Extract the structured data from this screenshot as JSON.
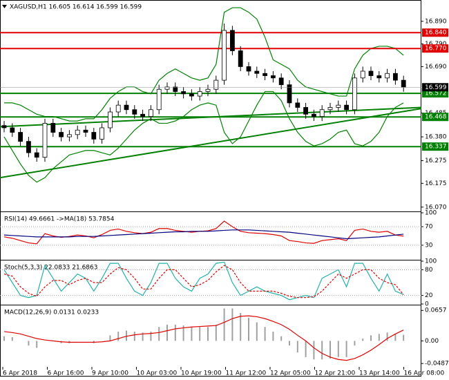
{
  "chart_data": [
    {
      "type": "candlestick",
      "title": "XAGUSD,H1 16.605 16.614 16.599 16.599",
      "open": [
        16.43,
        16.42,
        16.4,
        16.36,
        16.31,
        16.29,
        16.44,
        16.4,
        16.38,
        16.39,
        16.41,
        16.4,
        16.37,
        16.42,
        16.49,
        16.52,
        16.5,
        16.48,
        16.47,
        16.5,
        16.59,
        16.6,
        16.58,
        16.57,
        16.56,
        16.58,
        16.59,
        16.63,
        16.85,
        16.76,
        16.69,
        16.67,
        16.66,
        16.65,
        16.64,
        16.61,
        16.53,
        16.51,
        16.48,
        16.47,
        16.5,
        16.51,
        16.52,
        16.5,
        16.64,
        16.67,
        16.65,
        16.64,
        16.66,
        16.63
      ],
      "high": [
        16.45,
        16.44,
        16.42,
        16.38,
        16.33,
        16.46,
        16.46,
        16.42,
        16.41,
        16.43,
        16.43,
        16.42,
        16.44,
        16.51,
        16.54,
        16.54,
        16.52,
        16.5,
        16.52,
        16.61,
        16.62,
        16.62,
        16.6,
        16.59,
        16.6,
        16.61,
        16.65,
        16.88,
        16.87,
        16.78,
        16.71,
        16.69,
        16.68,
        16.67,
        16.66,
        16.63,
        16.55,
        16.53,
        16.5,
        16.52,
        16.53,
        16.54,
        16.54,
        16.66,
        16.69,
        16.69,
        16.67,
        16.68,
        16.68,
        16.65
      ],
      "low": [
        16.4,
        16.38,
        16.34,
        16.29,
        16.27,
        16.27,
        16.38,
        16.36,
        16.36,
        16.37,
        16.38,
        16.35,
        16.35,
        16.4,
        16.47,
        16.48,
        16.46,
        16.45,
        16.45,
        16.48,
        16.57,
        16.56,
        16.55,
        16.54,
        16.54,
        16.56,
        16.57,
        16.61,
        16.74,
        16.67,
        16.65,
        16.64,
        16.63,
        16.62,
        16.59,
        16.51,
        16.49,
        16.46,
        16.45,
        16.45,
        16.48,
        16.49,
        16.48,
        16.48,
        16.62,
        16.63,
        16.62,
        16.62,
        16.61,
        16.579
      ],
      "close": [
        16.42,
        16.4,
        16.36,
        16.31,
        16.29,
        16.44,
        16.4,
        16.38,
        16.39,
        16.41,
        16.4,
        16.37,
        16.42,
        16.49,
        16.52,
        16.5,
        16.48,
        16.47,
        16.5,
        16.59,
        16.6,
        16.58,
        16.57,
        16.56,
        16.58,
        16.59,
        16.63,
        16.85,
        16.76,
        16.69,
        16.67,
        16.66,
        16.65,
        16.64,
        16.61,
        16.53,
        16.51,
        16.48,
        16.47,
        16.5,
        16.51,
        16.52,
        16.5,
        16.64,
        16.67,
        16.65,
        16.64,
        16.66,
        16.63,
        16.599
      ],
      "upper_band": [
        16.53,
        16.53,
        16.52,
        16.5,
        16.48,
        16.47,
        16.47,
        16.46,
        16.45,
        16.45,
        16.46,
        16.46,
        16.5,
        16.55,
        16.58,
        16.6,
        16.6,
        16.58,
        16.57,
        16.63,
        16.66,
        16.68,
        16.66,
        16.64,
        16.63,
        16.64,
        16.7,
        16.93,
        16.95,
        16.95,
        16.93,
        16.9,
        16.82,
        16.72,
        16.7,
        16.68,
        16.63,
        16.6,
        16.59,
        16.58,
        16.57,
        16.56,
        16.56,
        16.68,
        16.74,
        16.77,
        16.78,
        16.78,
        16.77,
        16.74
      ],
      "lower_band": [
        16.38,
        16.32,
        16.26,
        16.21,
        16.18,
        16.2,
        16.24,
        16.27,
        16.3,
        16.31,
        16.32,
        16.32,
        16.31,
        16.3,
        16.33,
        16.37,
        16.41,
        16.44,
        16.46,
        16.44,
        16.44,
        16.45,
        16.47,
        16.5,
        16.52,
        16.53,
        16.52,
        16.4,
        16.35,
        16.38,
        16.45,
        16.52,
        16.58,
        16.58,
        16.54,
        16.46,
        16.4,
        16.36,
        16.34,
        16.35,
        16.37,
        16.4,
        16.41,
        16.35,
        16.34,
        16.36,
        16.4,
        16.47,
        16.51,
        16.53
      ],
      "band_color": "#008000",
      "trendlines": [
        {
          "start": 16.2,
          "end": 16.505
        },
        {
          "start": 16.425,
          "end": 16.51
        }
      ],
      "trend_color": "#008000",
      "levels": [
        {
          "value": 16.84,
          "label": "16.840",
          "color": "#e00000"
        },
        {
          "value": 16.77,
          "label": "16.770",
          "color": "#e00000"
        },
        {
          "value": 16.572,
          "color": "#008000"
        },
        {
          "value": 16.468,
          "color": "#008000"
        },
        {
          "value": 16.337,
          "color": "#008000"
        }
      ],
      "last_price": 16.599,
      "ylim": [
        16.054,
        16.981
      ],
      "yticks": [
        {
          "value": 16.89,
          "label": "16.890"
        },
        {
          "value": 16.79,
          "label": "16.790"
        },
        {
          "value": 16.69,
          "label": "16.690"
        },
        16.485,
        {
          "value": 16.38,
          "label": "16.380"
        },
        16.275,
        16.175,
        {
          "value": 16.07,
          "label": "16.070"
        }
      ]
    },
    {
      "type": "line",
      "title": "RSI(14) 49.6661 ->MA(18) 53.7854",
      "series": [
        {
          "color": "#e00000",
          "values": [
            48,
            45,
            40,
            35,
            33,
            55,
            50,
            47,
            49,
            52,
            50,
            46,
            53,
            62,
            65,
            60,
            57,
            55,
            58,
            66,
            66,
            62,
            60,
            58,
            60,
            61,
            66,
            82,
            70,
            60,
            57,
            56,
            55,
            53,
            50,
            40,
            38,
            35,
            34,
            40,
            42,
            44,
            40,
            62,
            65,
            60,
            58,
            60,
            52,
            49.6661
          ]
        },
        {
          "color": "#000080",
          "values": [
            52,
            51,
            50,
            49,
            48,
            48,
            48,
            48,
            48,
            49,
            49,
            49,
            50,
            51,
            52,
            53,
            54,
            55,
            56,
            57,
            58,
            59,
            59,
            60,
            60,
            60,
            61,
            62,
            63,
            63,
            63,
            62,
            61,
            60,
            59,
            58,
            56,
            54,
            52,
            50,
            48,
            46,
            44,
            45,
            46,
            47,
            48,
            50,
            52,
            53.7854
          ]
        }
      ],
      "ylim": [
        0,
        100
      ],
      "yticks": [
        100,
        70,
        30
      ],
      "grid": true
    },
    {
      "type": "line",
      "title": "Stoch(5,3,3) 22.0833 21.6863",
      "series": [
        {
          "color": "#20b2aa",
          "values": [
            80,
            50,
            20,
            15,
            20,
            90,
            60,
            30,
            50,
            70,
            60,
            30,
            60,
            95,
            95,
            60,
            30,
            20,
            50,
            95,
            95,
            60,
            40,
            30,
            60,
            70,
            95,
            98,
            50,
            20,
            30,
            40,
            30,
            25,
            20,
            10,
            15,
            20,
            15,
            60,
            70,
            80,
            40,
            95,
            95,
            60,
            30,
            70,
            30,
            22.0833
          ]
        },
        {
          "color": "#e00000",
          "dashed": true,
          "values": [
            70,
            65,
            40,
            25,
            18,
            40,
            55,
            55,
            45,
            55,
            60,
            50,
            50,
            70,
            85,
            80,
            60,
            35,
            35,
            60,
            80,
            80,
            60,
            40,
            45,
            55,
            75,
            90,
            80,
            50,
            30,
            30,
            30,
            30,
            25,
            18,
            15,
            15,
            17,
            30,
            50,
            70,
            60,
            70,
            80,
            80,
            60,
            50,
            45,
            21.6863
          ]
        }
      ],
      "ylim": [
        0,
        100
      ],
      "yticks": [
        100,
        80,
        20,
        0
      ],
      "grid": true
    },
    {
      "type": "macd",
      "title": "MACD(12,26,9) 0.0131 0.0233",
      "series": [
        {
          "kind": "bar",
          "color": "#a0a0a0",
          "values": [
            0.01,
            0.008,
            0.0,
            -0.01,
            -0.015,
            0.0,
            0.0,
            -0.005,
            -0.005,
            0.0,
            0.0,
            -0.005,
            0.0,
            0.012,
            0.02,
            0.022,
            0.02,
            0.018,
            0.02,
            0.03,
            0.035,
            0.035,
            0.033,
            0.03,
            0.03,
            0.03,
            0.035,
            0.07,
            0.07,
            0.06,
            0.05,
            0.04,
            0.03,
            0.02,
            0.01,
            -0.01,
            -0.025,
            -0.035,
            -0.04,
            -0.04,
            -0.038,
            -0.035,
            -0.035,
            -0.01,
            0.005,
            0.012,
            0.015,
            0.018,
            0.016,
            0.0131
          ]
        },
        {
          "kind": "line",
          "color": "#e00000",
          "values": [
            0.02,
            0.018,
            0.015,
            0.01,
            0.005,
            0.002,
            0.0,
            -0.002,
            -0.003,
            -0.003,
            -0.003,
            -0.003,
            -0.002,
            0.0,
            0.005,
            0.01,
            0.013,
            0.015,
            0.016,
            0.018,
            0.022,
            0.026,
            0.028,
            0.03,
            0.031,
            0.032,
            0.033,
            0.04,
            0.048,
            0.053,
            0.054,
            0.052,
            0.048,
            0.042,
            0.035,
            0.025,
            0.012,
            0.0,
            -0.015,
            -0.027,
            -0.035,
            -0.04,
            -0.042,
            -0.038,
            -0.03,
            -0.02,
            -0.008,
            0.005,
            0.015,
            0.0233
          ]
        }
      ],
      "ylim": [
        -0.056,
        0.075
      ],
      "yticks": [
        0.0657,
        {
          "value": 0,
          "label": "0.00"
        },
        -0.0487
      ],
      "x_labels": [
        "6 Apr 2018",
        "6 Apr 16:00",
        "9 Apr 10:00",
        "10 Apr 03:00",
        "10 Apr 19:00",
        "11 Apr 12:00",
        "12 Apr 05:00",
        "12 Apr 21:00",
        "13 Apr 14:00",
        "16 Apr 08:00"
      ]
    }
  ]
}
